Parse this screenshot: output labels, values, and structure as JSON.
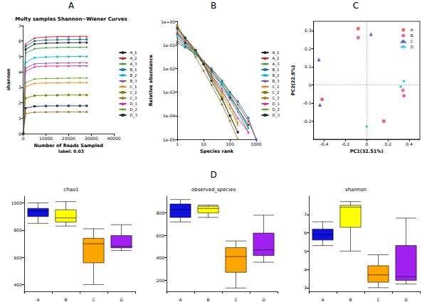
{
  "chart_data": [
    {
      "type": "line",
      "annotations": [
        "A"
      ],
      "title": "Multy samples Shannon~Wiener Curves",
      "subtitle": "label: 0.03",
      "x_label": "Number of Reads Sampled",
      "y_label": "shannon",
      "x": [
        0,
        1000,
        5000,
        10000,
        15000,
        20000,
        25000,
        28000
      ],
      "xlim": [
        0,
        40000
      ],
      "xticks": [
        0,
        10000,
        20000,
        30000,
        40000
      ],
      "ylim": [
        0,
        7
      ],
      "yticks": [
        0,
        1,
        2,
        3,
        4,
        5,
        6,
        7
      ],
      "grid": false,
      "legend": "right",
      "series": [
        {
          "name": "A_1",
          "color": "#1f1f1f",
          "marker": "circle",
          "values": [
            0,
            5.45,
            5.8,
            5.86,
            5.88,
            5.89,
            5.9,
            5.9
          ]
        },
        {
          "name": "A_2",
          "color": "#e41a1c",
          "marker": "triangle",
          "values": [
            0,
            5.8,
            6.2,
            6.26,
            6.28,
            6.29,
            6.3,
            6.3
          ]
        },
        {
          "name": "A_3",
          "color": "#33a02c",
          "marker": "diamond",
          "values": [
            0,
            5.2,
            5.5,
            5.56,
            5.58,
            5.59,
            5.6,
            5.6
          ]
        },
        {
          "name": "B_1",
          "color": "#1f78b4",
          "marker": "square",
          "values": [
            0,
            5.65,
            6.0,
            6.06,
            6.08,
            6.09,
            6.1,
            6.1
          ]
        },
        {
          "name": "B_2",
          "color": "#00bcd4",
          "marker": "circle",
          "values": [
            0,
            4.6,
            4.92,
            4.96,
            4.98,
            4.99,
            5.0,
            5.0
          ]
        },
        {
          "name": "B_3",
          "color": "#984ea3",
          "marker": "triangle",
          "values": [
            0,
            4.25,
            4.52,
            4.56,
            4.58,
            4.59,
            4.6,
            4.6
          ]
        },
        {
          "name": "C_1",
          "color": "#ff7f00",
          "marker": "diamond",
          "values": [
            0,
            3.05,
            3.25,
            3.28,
            3.29,
            3.3,
            3.3,
            3.3
          ]
        },
        {
          "name": "C_2",
          "color": "#7f7f00",
          "marker": "square",
          "values": [
            0,
            2.3,
            2.46,
            2.48,
            2.49,
            2.5,
            2.5,
            2.5
          ]
        },
        {
          "name": "C_3",
          "color": "#a6761d",
          "marker": "circle",
          "values": [
            0,
            1.3,
            1.38,
            1.39,
            1.4,
            1.4,
            1.4,
            1.4
          ]
        },
        {
          "name": "D_1",
          "color": "#e7298a",
          "marker": "triangle",
          "values": [
            0,
            4.05,
            4.33,
            4.37,
            4.38,
            4.39,
            4.4,
            4.4
          ]
        },
        {
          "name": "D_2",
          "color": "#66a61e",
          "marker": "diamond",
          "values": [
            0,
            3.3,
            3.54,
            3.57,
            3.58,
            3.59,
            3.6,
            3.6
          ]
        },
        {
          "name": "D_3",
          "color": "#17324d",
          "marker": "square",
          "values": [
            0,
            1.65,
            1.77,
            1.79,
            1.8,
            1.8,
            1.8,
            1.8
          ]
        }
      ]
    },
    {
      "type": "line",
      "annotations": [
        "B"
      ],
      "x_label": "Species rank",
      "y_label": "Relative abundance",
      "log": true,
      "grid": false,
      "legend": "right",
      "x": [
        1,
        2,
        5,
        10,
        20,
        50,
        100,
        200,
        500,
        1000
      ],
      "xlim": [
        1,
        1000
      ],
      "xticks": [
        1,
        10,
        100,
        1000
      ],
      "ylim": [
        1e-05,
        1
      ],
      "yticks": [
        {
          "value": 1e-05,
          "label": "1e-05"
        },
        {
          "value": 0.0001,
          "label": "1e-04"
        },
        {
          "value": 0.001,
          "label": "1e-03"
        },
        {
          "value": 0.01,
          "label": "1e-02"
        },
        {
          "value": 0.1,
          "label": "1e-01"
        },
        {
          "value": 1,
          "label": "1e+00"
        }
      ],
      "series": [
        {
          "name": "A_1",
          "color": "#1f1f1f",
          "marker": "circle",
          "values": [
            0.3,
            0.12,
            0.05,
            0.02,
            0.008,
            0.002,
            0.0006,
            0.0002,
            4e-05,
            null
          ]
        },
        {
          "name": "A_2",
          "color": "#e41a1c",
          "marker": "triangle",
          "values": [
            0.15,
            0.09,
            0.04,
            0.02,
            0.009,
            0.003,
            0.001,
            0.0003,
            6e-05,
            1e-05
          ]
        },
        {
          "name": "A_3",
          "color": "#33a02c",
          "marker": "diamond",
          "values": [
            0.2,
            0.1,
            0.045,
            0.018,
            0.007,
            0.0025,
            0.0008,
            0.0002,
            3e-05,
            null
          ]
        },
        {
          "name": "B_1",
          "color": "#1f78b4",
          "marker": "square",
          "values": [
            0.12,
            0.08,
            0.04,
            0.02,
            0.01,
            0.003,
            0.001,
            0.0004,
            8e-05,
            1e-05
          ]
        },
        {
          "name": "B_2",
          "color": "#00bcd4",
          "marker": "circle",
          "values": [
            0.25,
            0.1,
            0.04,
            0.015,
            0.006,
            0.002,
            0.0007,
            0.0002,
            3e-05,
            null
          ]
        },
        {
          "name": "B_3",
          "color": "#984ea3",
          "marker": "triangle",
          "values": [
            0.3,
            0.15,
            0.05,
            0.015,
            0.005,
            0.0015,
            0.0005,
            0.00015,
            2e-05,
            null
          ]
        },
        {
          "name": "C_1",
          "color": "#ff7f00",
          "marker": "diamond",
          "values": [
            0.5,
            0.2,
            0.06,
            0.02,
            0.005,
            0.0008,
            0.0002,
            4e-05,
            null,
            null
          ]
        },
        {
          "name": "C_2",
          "color": "#7f7f00",
          "marker": "square",
          "values": [
            0.6,
            0.2,
            0.05,
            0.015,
            0.004,
            0.0006,
            0.0001,
            2e-05,
            null,
            null
          ]
        },
        {
          "name": "C_3",
          "color": "#a6761d",
          "marker": "circle",
          "values": [
            0.7,
            0.15,
            0.03,
            0.008,
            0.002,
            0.0003,
            6e-05,
            1e-05,
            null,
            null
          ]
        },
        {
          "name": "D_1",
          "color": "#e7298a",
          "marker": "triangle",
          "values": [
            0.35,
            0.15,
            0.05,
            0.015,
            0.005,
            0.0012,
            0.0003,
            8e-05,
            2e-05,
            null
          ]
        },
        {
          "name": "D_2",
          "color": "#66a61e",
          "marker": "diamond",
          "values": [
            0.4,
            0.18,
            0.05,
            0.015,
            0.004,
            0.001,
            0.0003,
            5e-05,
            null,
            null
          ]
        },
        {
          "name": "D_3",
          "color": "#17324d",
          "marker": "square",
          "values": [
            0.5,
            0.2,
            0.06,
            0.015,
            0.003,
            0.0005,
            0.0001,
            2e-05,
            null,
            null
          ]
        }
      ]
    },
    {
      "type": "scatter",
      "annotations": [
        "C"
      ],
      "x_label": "PC1(32.51%)",
      "y_label": "PC2(22.8%)",
      "xlim": [
        -0.5,
        0.5
      ],
      "xticks": [
        -0.4,
        -0.2,
        0,
        0.2,
        0.4
      ],
      "ylim": [
        -0.3,
        0.35
      ],
      "yticks": [
        -0.2,
        -0.1,
        0,
        0.1,
        0.2,
        0.3
      ],
      "grid": false,
      "legend": "upper right",
      "series": [
        {
          "name": "A",
          "color": "#ff3333",
          "marker": "circle",
          "x": [
            -0.08,
            -0.42,
            0.16
          ],
          "values": [
            0.31,
            -0.08,
            -0.2
          ]
        },
        {
          "name": "B",
          "color": "#e040a0",
          "marker": "circle",
          "x": [
            -0.08,
            0.34,
            0.35
          ],
          "values": [
            0.26,
            -0.03,
            -0.06
          ]
        },
        {
          "name": "C",
          "color": "#2233cc",
          "marker": "triangle",
          "x": [
            0.04,
            -0.45,
            -0.44
          ],
          "values": [
            0.28,
            0.14,
            -0.11
          ]
        },
        {
          "name": "D",
          "color": "#22c6d6",
          "marker": "diamond",
          "x": [
            0.35,
            0.32,
            0.0
          ],
          "values": [
            0.02,
            -0.01,
            -0.23
          ]
        }
      ]
    },
    {
      "type": "boxplot",
      "title": "chao1",
      "categories": [
        "A",
        "B",
        "C",
        "D"
      ],
      "colors": [
        "#1010e0",
        "#ffff00",
        "#ffa500",
        "#a020f0"
      ],
      "values": [
        [
          850,
          900,
          940,
          960,
          1000
        ],
        [
          830,
          860,
          890,
          950,
          1010
        ],
        [
          400,
          560,
          700,
          740,
          810
        ],
        [
          650,
          670,
          680,
          760,
          840
        ]
      ],
      "ylim": [
        350,
        1050
      ],
      "yticks": [
        400,
        600,
        800,
        1000
      ],
      "grid": false
    },
    {
      "type": "boxplot",
      "annotations": [
        "D"
      ],
      "title": "observed_species",
      "categories": [
        "A",
        "B",
        "C",
        "D"
      ],
      "colors": [
        "#1010e0",
        "#ffff00",
        "#ffa500",
        "#a020f0"
      ],
      "values": [
        [
          720,
          760,
          830,
          880,
          920
        ],
        [
          760,
          800,
          840,
          860,
          870
        ],
        [
          130,
          270,
          410,
          490,
          550
        ],
        [
          360,
          420,
          470,
          620,
          780
        ]
      ],
      "ylim": [
        100,
        950
      ],
      "yticks": [
        200,
        400,
        600,
        800
      ],
      "grid": false
    },
    {
      "type": "boxplot",
      "title": "shannon",
      "categories": [
        "A",
        "B",
        "C",
        "D"
      ],
      "colors": [
        "#1010e0",
        "#ffff00",
        "#ffa500",
        "#a020f0"
      ],
      "values": [
        [
          5.3,
          5.6,
          5.9,
          6.2,
          6.6
        ],
        [
          5.0,
          6.3,
          7.4,
          7.5,
          7.7
        ],
        [
          3.0,
          3.3,
          3.7,
          4.2,
          4.8
        ],
        [
          3.2,
          3.4,
          3.6,
          5.3,
          6.8
        ]
      ],
      "ylim": [
        2.8,
        8
      ],
      "yticks": [
        3,
        4,
        5,
        6,
        7
      ],
      "grid": false
    }
  ]
}
